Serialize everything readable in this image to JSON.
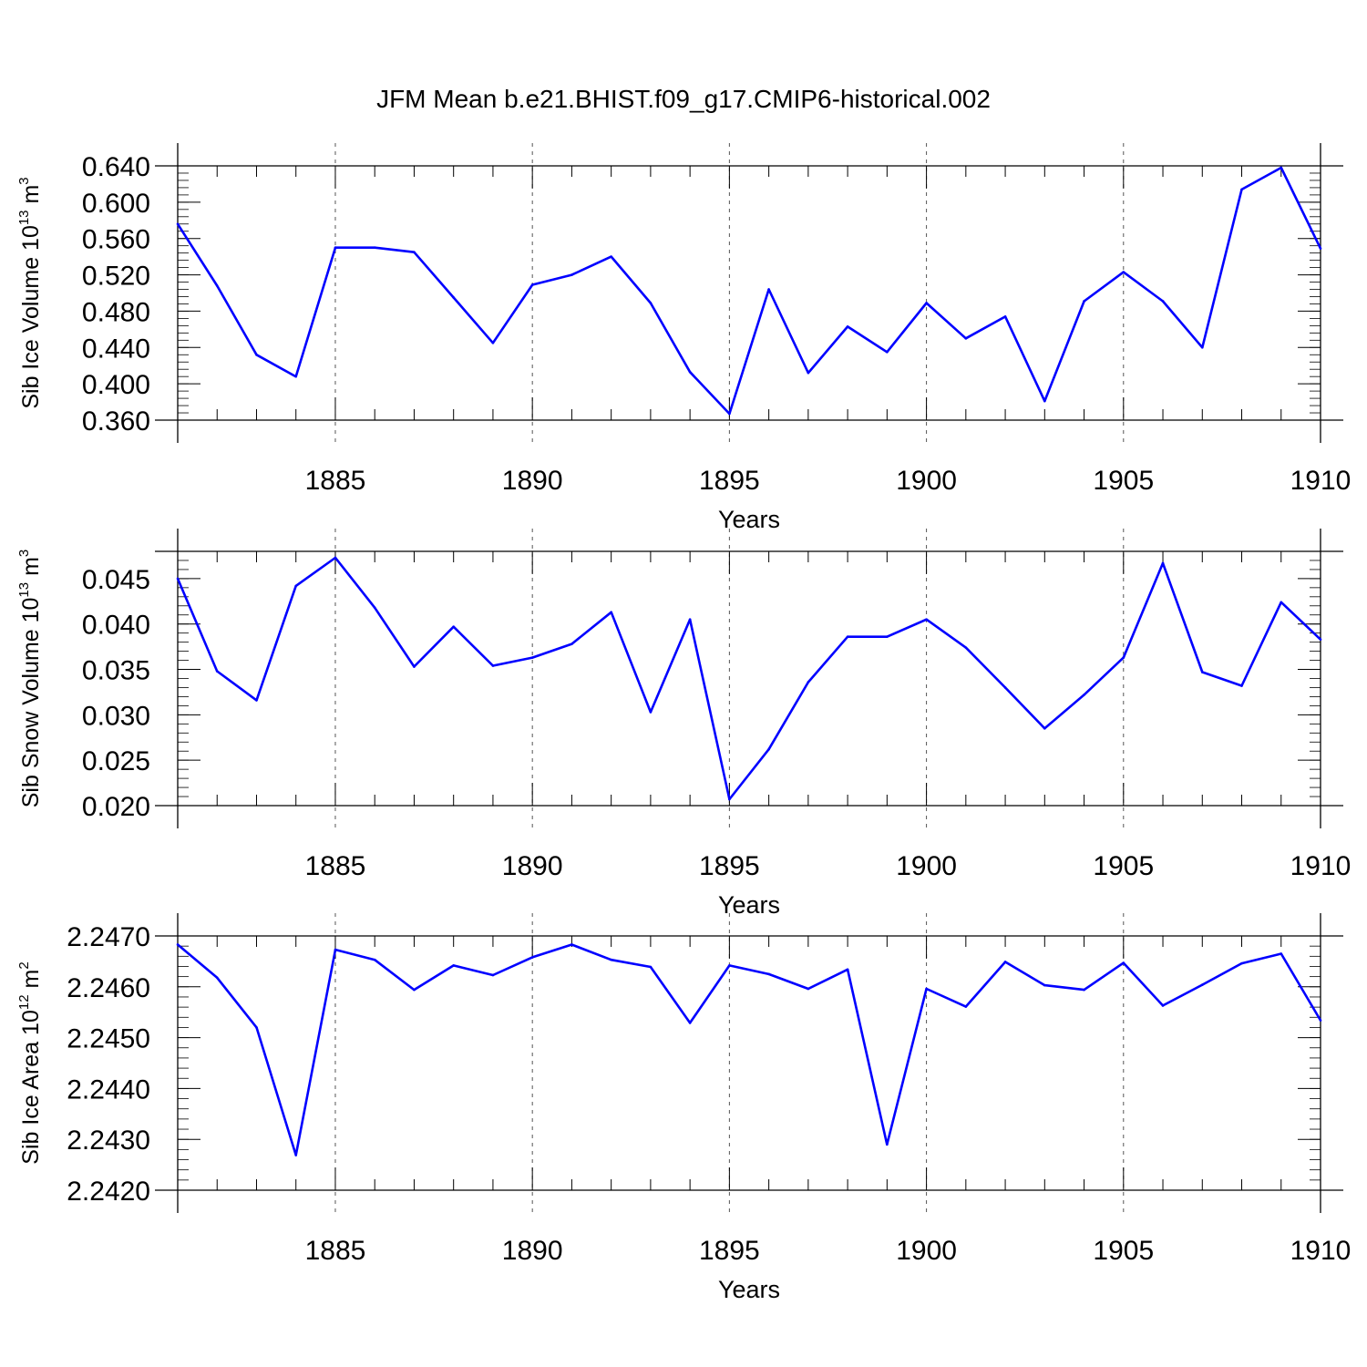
{
  "title": "JFM Mean b.e21.BHIST.f09_g17.CMIP6-historical.002",
  "line_color": "#0000ff",
  "chart_data": [
    {
      "type": "line",
      "title": "JFM Mean b.e21.BHIST.f09_g17.CMIP6-historical.002",
      "xlabel": "Years",
      "ylabel_main": "Sib Ice Volume 10",
      "ylabel_exp": "13",
      "ylabel_unit": " m",
      "ylabel_unit_exp": "3",
      "xlim": [
        1881,
        1910
      ],
      "ylim": [
        0.36,
        0.64
      ],
      "xticks": [
        1885,
        1890,
        1895,
        1900,
        1905,
        1910
      ],
      "xtick_labels": [
        "1885",
        "1890",
        "1895",
        "1900",
        "1905",
        "1910"
      ],
      "yticks": [
        0.36,
        0.4,
        0.44,
        0.48,
        0.52,
        0.56,
        0.6,
        0.64
      ],
      "ytick_labels": [
        "0.360",
        "0.400",
        "0.440",
        "0.480",
        "0.520",
        "0.560",
        "0.600",
        "0.640"
      ],
      "x": [
        1881,
        1882,
        1883,
        1884,
        1885,
        1886,
        1887,
        1888,
        1889,
        1890,
        1891,
        1892,
        1893,
        1894,
        1895,
        1896,
        1897,
        1898,
        1899,
        1900,
        1901,
        1902,
        1903,
        1904,
        1905,
        1906,
        1907,
        1908,
        1909,
        1910
      ],
      "values": [
        0.576,
        0.508,
        0.432,
        0.408,
        0.55,
        0.55,
        0.545,
        0.495,
        0.445,
        0.509,
        0.52,
        0.54,
        0.489,
        0.413,
        0.367,
        0.504,
        0.412,
        0.463,
        0.435,
        0.489,
        0.45,
        0.474,
        0.381,
        0.491,
        0.523,
        0.491,
        0.44,
        0.614,
        0.638,
        0.549
      ]
    },
    {
      "type": "line",
      "title": "",
      "xlabel": "Years",
      "ylabel_main": "Sib Snow Volume 10",
      "ylabel_exp": "13",
      "ylabel_unit": " m",
      "ylabel_unit_exp": "3",
      "xlim": [
        1881,
        1910
      ],
      "ylim": [
        0.02,
        0.048
      ],
      "xticks": [
        1885,
        1890,
        1895,
        1900,
        1905,
        1910
      ],
      "xtick_labels": [
        "1885",
        "1890",
        "1895",
        "1900",
        "1905",
        "1910"
      ],
      "yticks": [
        0.02,
        0.025,
        0.03,
        0.035,
        0.04,
        0.045
      ],
      "ytick_labels": [
        "0.020",
        "0.025",
        "0.030",
        "0.035",
        "0.040",
        "0.045"
      ],
      "x": [
        1881,
        1882,
        1883,
        1884,
        1885,
        1886,
        1887,
        1888,
        1889,
        1890,
        1891,
        1892,
        1893,
        1894,
        1895,
        1896,
        1897,
        1898,
        1899,
        1900,
        1901,
        1902,
        1903,
        1904,
        1905,
        1906,
        1907,
        1908,
        1909,
        1910
      ],
      "values": [
        0.045,
        0.0348,
        0.0316,
        0.0442,
        0.0473,
        0.0418,
        0.0353,
        0.0397,
        0.0354,
        0.0363,
        0.0378,
        0.0413,
        0.0303,
        0.0405,
        0.0207,
        0.0262,
        0.0336,
        0.0386,
        0.0386,
        0.0405,
        0.0374,
        0.033,
        0.0285,
        0.0322,
        0.0363,
        0.0467,
        0.0347,
        0.0332,
        0.0424,
        0.0383
      ]
    },
    {
      "type": "line",
      "title": "",
      "xlabel": "Years",
      "ylabel_main": "Sib Ice Area 10",
      "ylabel_exp": "12",
      "ylabel_unit": " m",
      "ylabel_unit_exp": "2",
      "xlim": [
        1881,
        1910
      ],
      "ylim": [
        2.242,
        2.247
      ],
      "xticks": [
        1885,
        1890,
        1895,
        1900,
        1905,
        1910
      ],
      "xtick_labels": [
        "1885",
        "1890",
        "1895",
        "1900",
        "1905",
        "1910"
      ],
      "yticks": [
        2.242,
        2.243,
        2.244,
        2.245,
        2.246,
        2.247
      ],
      "ytick_labels": [
        "2.2420",
        "2.2430",
        "2.2440",
        "2.2450",
        "2.2460",
        "2.2470"
      ],
      "x": [
        1881,
        1882,
        1883,
        1884,
        1885,
        1886,
        1887,
        1888,
        1889,
        1890,
        1891,
        1892,
        1893,
        1894,
        1895,
        1896,
        1897,
        1898,
        1899,
        1900,
        1901,
        1902,
        1903,
        1904,
        1905,
        1906,
        1907,
        1908,
        1909,
        1910
      ],
      "values": [
        2.24683,
        2.24618,
        2.2452,
        2.24269,
        2.24673,
        2.24653,
        2.24594,
        2.24642,
        2.24623,
        2.24658,
        2.24683,
        2.24653,
        2.24639,
        2.24529,
        2.24642,
        2.24625,
        2.24596,
        2.24634,
        2.2429,
        2.24596,
        2.24561,
        2.24649,
        2.24603,
        2.24594,
        2.24647,
        2.24563,
        2.24604,
        2.24646,
        2.24665,
        2.24534
      ]
    }
  ]
}
